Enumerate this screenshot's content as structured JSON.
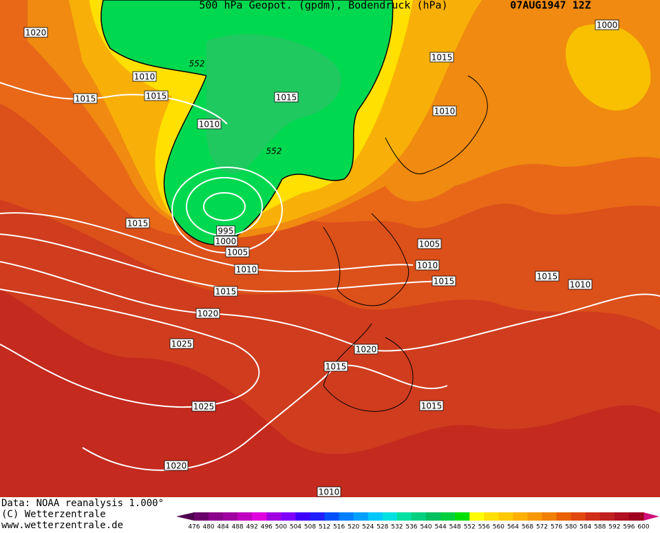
{
  "header": {
    "title": "500 hPa Geopot. (gpdm), Bodendruck (hPa)",
    "date": "07AUG1947 12Z"
  },
  "contour_labels": [
    "1020",
    "1010",
    "552",
    "1015",
    "1015",
    "1015",
    "1010",
    "552",
    "1015",
    "1010",
    "1000",
    "1015",
    "995",
    "1000",
    "1005",
    "1010",
    "1005",
    "1010",
    "1015",
    "1015",
    "1020",
    "1015",
    "1010",
    "1025",
    "1020",
    "1015",
    "1025",
    "1015",
    "1020",
    "1010"
  ],
  "footer": {
    "source": "Data: NOAA reanalysis 1.000°",
    "copyright": "(C) Wetterzentrale",
    "url": "www.wetterzentrale.de"
  },
  "colorbar": {
    "labels": [
      "476",
      "480",
      "484",
      "488",
      "492",
      "496",
      "500",
      "504",
      "508",
      "512",
      "516",
      "520",
      "524",
      "528",
      "532",
      "536",
      "540",
      "544",
      "548",
      "552",
      "556",
      "560",
      "564",
      "568",
      "572",
      "576",
      "580",
      "584",
      "588",
      "592",
      "596",
      "600"
    ],
    "colors": [
      "#6a006a",
      "#8a008a",
      "#a000a0",
      "#c000c0",
      "#e000e0",
      "#a000e0",
      "#8000ff",
      "#4000ff",
      "#2020ff",
      "#0050ff",
      "#0080ff",
      "#00a0ff",
      "#00c8ff",
      "#00e0e0",
      "#00e0a0",
      "#00d080",
      "#00c060",
      "#00d040",
      "#00e000",
      "#ffff00",
      "#ffe000",
      "#ffc800",
      "#ffb000",
      "#f89800",
      "#f08000",
      "#e86000",
      "#e04810",
      "#d03018",
      "#c02020",
      "#b01020",
      "#a00020"
    ]
  }
}
